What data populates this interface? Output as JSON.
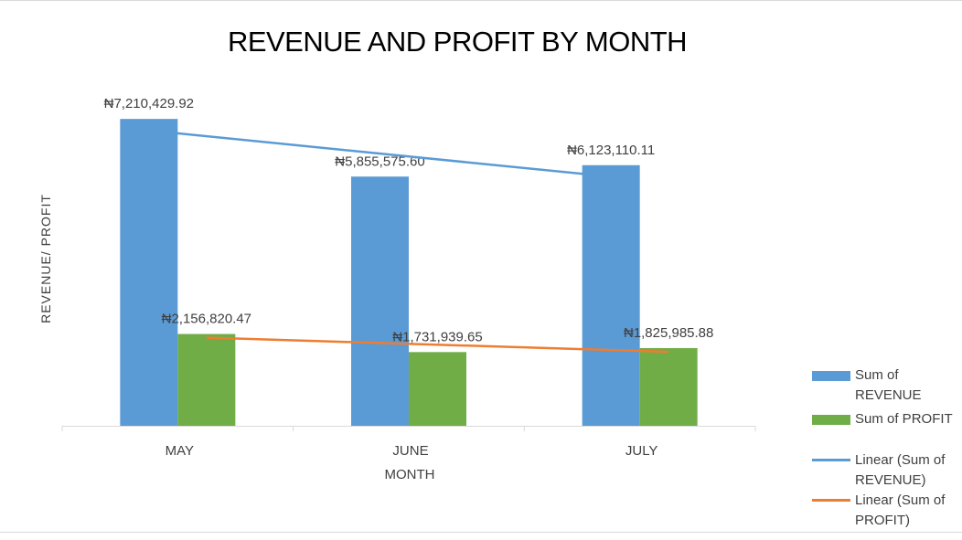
{
  "chart_data": {
    "type": "bar",
    "title": "REVENUE AND PROFIT BY MONTH",
    "xlabel": "MONTH",
    "ylabel": "REVENUE/ PROFIT",
    "categories": [
      "MAY",
      "JUNE",
      "JULY"
    ],
    "series": [
      {
        "name": "Sum of REVENUE",
        "values": [
          7210429.92,
          5855575.6,
          6123110.11
        ],
        "labels": [
          "₦7,210,429.92",
          "₦5,855,575.60",
          "₦6,123,110.11"
        ],
        "color": "#5B9BD5"
      },
      {
        "name": "Sum of PROFIT",
        "values": [
          2156820.47,
          1731939.65,
          1825985.88
        ],
        "labels": [
          "₦2,156,820.47",
          "₦1,731,939.65",
          "₦1,825,985.88"
        ],
        "color": "#70AD47"
      }
    ],
    "trendlines": [
      {
        "name": "Linear (Sum of REVENUE)",
        "of_series": 0,
        "type": "linear",
        "color": "#5B9BD5"
      },
      {
        "name": "Linear (Sum of PROFIT)",
        "of_series": 1,
        "type": "linear",
        "color": "#ED7D31"
      }
    ],
    "ylim": [
      0,
      7600000
    ],
    "grid": false,
    "y_tick_labels": false,
    "legend_position": "right"
  }
}
